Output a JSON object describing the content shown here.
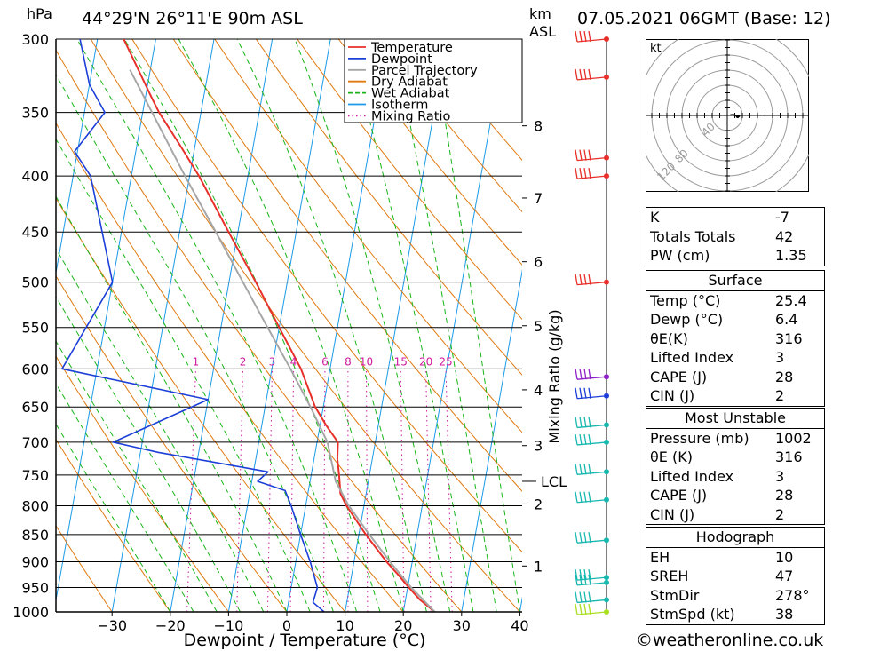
{
  "header": {
    "hpa_unit": "hPa",
    "location": "44°29'N 26°11'E 90m ASL",
    "km_unit": "km",
    "asl_unit": "ASL",
    "datetime": "07.05.2021 06GMT (Base: 12)"
  },
  "copyright": "©weatheronline.co.uk",
  "chart_data": [
    {
      "type": "line",
      "subtype": "skew-t log-p",
      "xlabel": "Dewpoint / Temperature (°C)",
      "ylabel": "hPa",
      "pressure_ticks": [
        300,
        350,
        400,
        450,
        500,
        550,
        600,
        650,
        700,
        750,
        800,
        850,
        900,
        950,
        1000
      ],
      "temperature_ticks": [
        -30,
        -20,
        -10,
        0,
        10,
        20,
        30,
        40
      ],
      "xlim": [
        -40,
        40
      ],
      "ylim": [
        1000,
        300
      ],
      "y_scale": "log",
      "km_ticks": [
        {
          "label": "1",
          "p": 908
        },
        {
          "label": "2",
          "p": 797
        },
        {
          "label": "3",
          "p": 705
        },
        {
          "label": "4",
          "p": 627
        },
        {
          "label": "5",
          "p": 548
        },
        {
          "label": "6",
          "p": 479
        },
        {
          "label": "7",
          "p": 419
        },
        {
          "label": "8",
          "p": 360
        }
      ],
      "lcl": {
        "label": "LCL",
        "p": 760
      },
      "mixing_ratio_axis_label": "Mixing Ratio (g/kg)",
      "mixing_ratio_labels": [
        "1",
        "2",
        "3",
        "4",
        "6",
        "8",
        "10",
        "15",
        "20",
        "25"
      ],
      "legend": {
        "placement": "top-right",
        "entries": [
          {
            "name": "Temperature",
            "color": "#e8302a",
            "style": "solid"
          },
          {
            "name": "Dewpoint",
            "color": "#1c3fd8",
            "style": "solid"
          },
          {
            "name": "Parcel Trajectory",
            "color": "#a6a6a6",
            "style": "solid"
          },
          {
            "name": "Dry Adiabat",
            "color": "#e07a10",
            "style": "solid"
          },
          {
            "name": "Wet Adiabat",
            "color": "#18b518",
            "style": "dashed"
          },
          {
            "name": "Isotherm",
            "color": "#1a9ae8",
            "style": "solid"
          },
          {
            "name": "Mixing Ratio",
            "color": "#d01aa0",
            "style": "dotted"
          }
        ]
      },
      "series": [
        {
          "name": "Temperature",
          "color": "#e8302a",
          "points": [
            [
              1000,
              25.4
            ],
            [
              975,
              22.5
            ],
            [
              950,
              20.2
            ],
            [
              925,
              18.0
            ],
            [
              900,
              15.6
            ],
            [
              850,
              11.2
            ],
            [
              800,
              7.0
            ],
            [
              780,
              5.6
            ],
            [
              750,
              4.8
            ],
            [
              725,
              4.0
            ],
            [
              700,
              3.6
            ],
            [
              675,
              1.0
            ],
            [
              650,
              -1.4
            ],
            [
              630,
              -2.8
            ],
            [
              600,
              -5.0
            ],
            [
              550,
              -10.0
            ],
            [
              500,
              -15.4
            ],
            [
              450,
              -21.6
            ],
            [
              400,
              -28.4
            ],
            [
              375,
              -32.6
            ],
            [
              350,
              -37.2
            ],
            [
              340,
              -38.8
            ],
            [
              300,
              -45.5
            ]
          ]
        },
        {
          "name": "Dewpoint",
          "color": "#1c3fd8",
          "points": [
            [
              1000,
              6.4
            ],
            [
              980,
              4.2
            ],
            [
              950,
              4.5
            ],
            [
              900,
              2.5
            ],
            [
              850,
              0.0
            ],
            [
              800,
              -2.5
            ],
            [
              775,
              -4.0
            ],
            [
              760,
              -9.0
            ],
            [
              745,
              -7.5
            ],
            [
              715,
              -27.0
            ],
            [
              700,
              -35.0
            ],
            [
              640,
              -20.0
            ],
            [
              600,
              -46.0
            ],
            [
              500,
              -40.0
            ],
            [
              400,
              -47.0
            ],
            [
              380,
              -50.5
            ],
            [
              350,
              -46.5
            ],
            [
              330,
              -50.0
            ],
            [
              300,
              -53.0
            ]
          ]
        },
        {
          "name": "Parcel Trajectory",
          "color": "#a6a6a6",
          "points": [
            [
              1000,
              25.4
            ],
            [
              950,
              20.6
            ],
            [
              900,
              16.2
            ],
            [
              850,
              11.8
            ],
            [
              800,
              7.4
            ],
            [
              760,
              4.4
            ],
            [
              700,
              1.8
            ],
            [
              650,
              -2.2
            ],
            [
              600,
              -6.8
            ],
            [
              550,
              -12.0
            ],
            [
              500,
              -17.6
            ],
            [
              450,
              -23.8
            ],
            [
              400,
              -30.8
            ],
            [
              350,
              -38.4
            ],
            [
              320,
              -43.5
            ]
          ]
        }
      ],
      "wind_barbs": [
        {
          "p": 300,
          "color": "#e8302a"
        },
        {
          "p": 325,
          "color": "#e8302a"
        },
        {
          "p": 385,
          "color": "#e8302a"
        },
        {
          "p": 400,
          "color": "#e8302a"
        },
        {
          "p": 500,
          "color": "#e8302a"
        },
        {
          "p": 610,
          "color": "#9020c8"
        },
        {
          "p": 635,
          "color": "#1c3fd8"
        },
        {
          "p": 675,
          "color": "#18b8b0"
        },
        {
          "p": 700,
          "color": "#18b8b0"
        },
        {
          "p": 745,
          "color": "#18b8b0"
        },
        {
          "p": 790,
          "color": "#18b8b0"
        },
        {
          "p": 860,
          "color": "#18b8b0"
        },
        {
          "p": 930,
          "color": "#18b8b0"
        },
        {
          "p": 940,
          "color": "#18b8b0"
        },
        {
          "p": 975,
          "color": "#18b8b0"
        },
        {
          "p": 1000,
          "color": "#a8e020"
        }
      ]
    },
    {
      "type": "scatter",
      "subtype": "hodograph",
      "unit_label": "kt",
      "ring_labels": [
        "40",
        "80",
        "120"
      ],
      "points": [
        [
          4,
          0.5
        ],
        [
          8,
          0.8
        ],
        [
          12,
          -0.5
        ],
        [
          15,
          -1.5
        ],
        [
          14,
          -2.5
        ],
        [
          12,
          -1.5
        ]
      ]
    }
  ],
  "indices": {
    "block1": [
      {
        "label": "K",
        "value": "-7"
      },
      {
        "label": "Totals Totals",
        "value": "42"
      },
      {
        "label": "PW (cm)",
        "value": "1.35"
      }
    ],
    "surface_title": "Surface",
    "surface": [
      {
        "label": "Temp (°C)",
        "value": "25.4"
      },
      {
        "label": "Dewp (°C)",
        "value": "6.4"
      },
      {
        "label": "θE(K)",
        "value": "316"
      },
      {
        "label": "Lifted Index",
        "value": "3"
      },
      {
        "label": "CAPE (J)",
        "value": "28"
      },
      {
        "label": "CIN (J)",
        "value": "2"
      }
    ],
    "mu_title": "Most Unstable",
    "mu": [
      {
        "label": "Pressure (mb)",
        "value": "1002"
      },
      {
        "label": "θE (K)",
        "value": "316"
      },
      {
        "label": "Lifted Index",
        "value": "3"
      },
      {
        "label": "CAPE (J)",
        "value": "28"
      },
      {
        "label": "CIN (J)",
        "value": "2"
      }
    ],
    "hodo_title": "Hodograph",
    "hodo": [
      {
        "label": "EH",
        "value": "10"
      },
      {
        "label": "SREH",
        "value": "47"
      },
      {
        "label": "StmDir",
        "value": "278°"
      },
      {
        "label": "StmSpd (kt)",
        "value": "38"
      }
    ]
  }
}
